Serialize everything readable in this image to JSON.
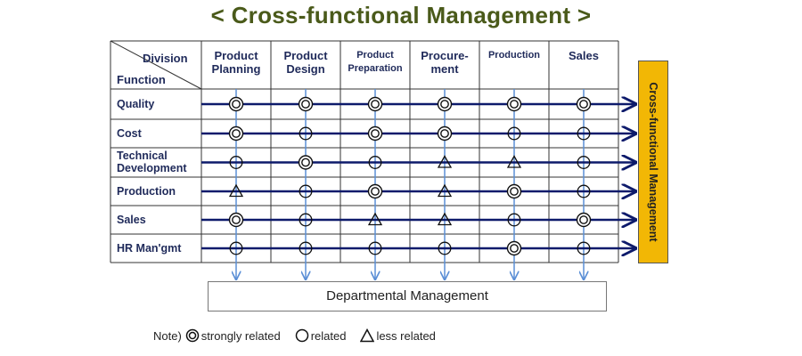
{
  "title": "< Cross-functional Management >",
  "header": {
    "corner_division": "Division",
    "corner_function": "Function",
    "columns": [
      "Product Planning",
      "Product Design",
      "Product Preparation",
      "Procure-ment",
      "Production",
      "Sales"
    ]
  },
  "rows": [
    {
      "label": "Quality",
      "marks": [
        "strong",
        "strong",
        "strong",
        "strong",
        "strong",
        "strong"
      ]
    },
    {
      "label": "Cost",
      "marks": [
        "strong",
        "related",
        "strong",
        "strong",
        "related",
        "related"
      ]
    },
    {
      "label": "Technical Development",
      "marks": [
        "related",
        "strong",
        "related",
        "less",
        "less",
        "related"
      ]
    },
    {
      "label": "Production",
      "marks": [
        "less",
        "related",
        "strong",
        "less",
        "strong",
        "related"
      ]
    },
    {
      "label": "Sales",
      "marks": [
        "strong",
        "related",
        "less",
        "less",
        "related",
        "strong"
      ]
    },
    {
      "label": "HR Man'gmt",
      "marks": [
        "related",
        "related",
        "related",
        "related",
        "strong",
        "related"
      ]
    }
  ],
  "side_box": "Cross-functional Management",
  "bottom_box": "Departmental Management",
  "note": {
    "prefix": "Note)",
    "strong": "strongly related",
    "related": "related",
    "less": "less related"
  },
  "colors": {
    "title": "#4a5a1a",
    "header_text": "#1f2a5a",
    "row_arrow": "#0d1a6b",
    "col_arrow": "#5b8fd6",
    "side_box": "#f2b705",
    "grid": "#333333"
  }
}
